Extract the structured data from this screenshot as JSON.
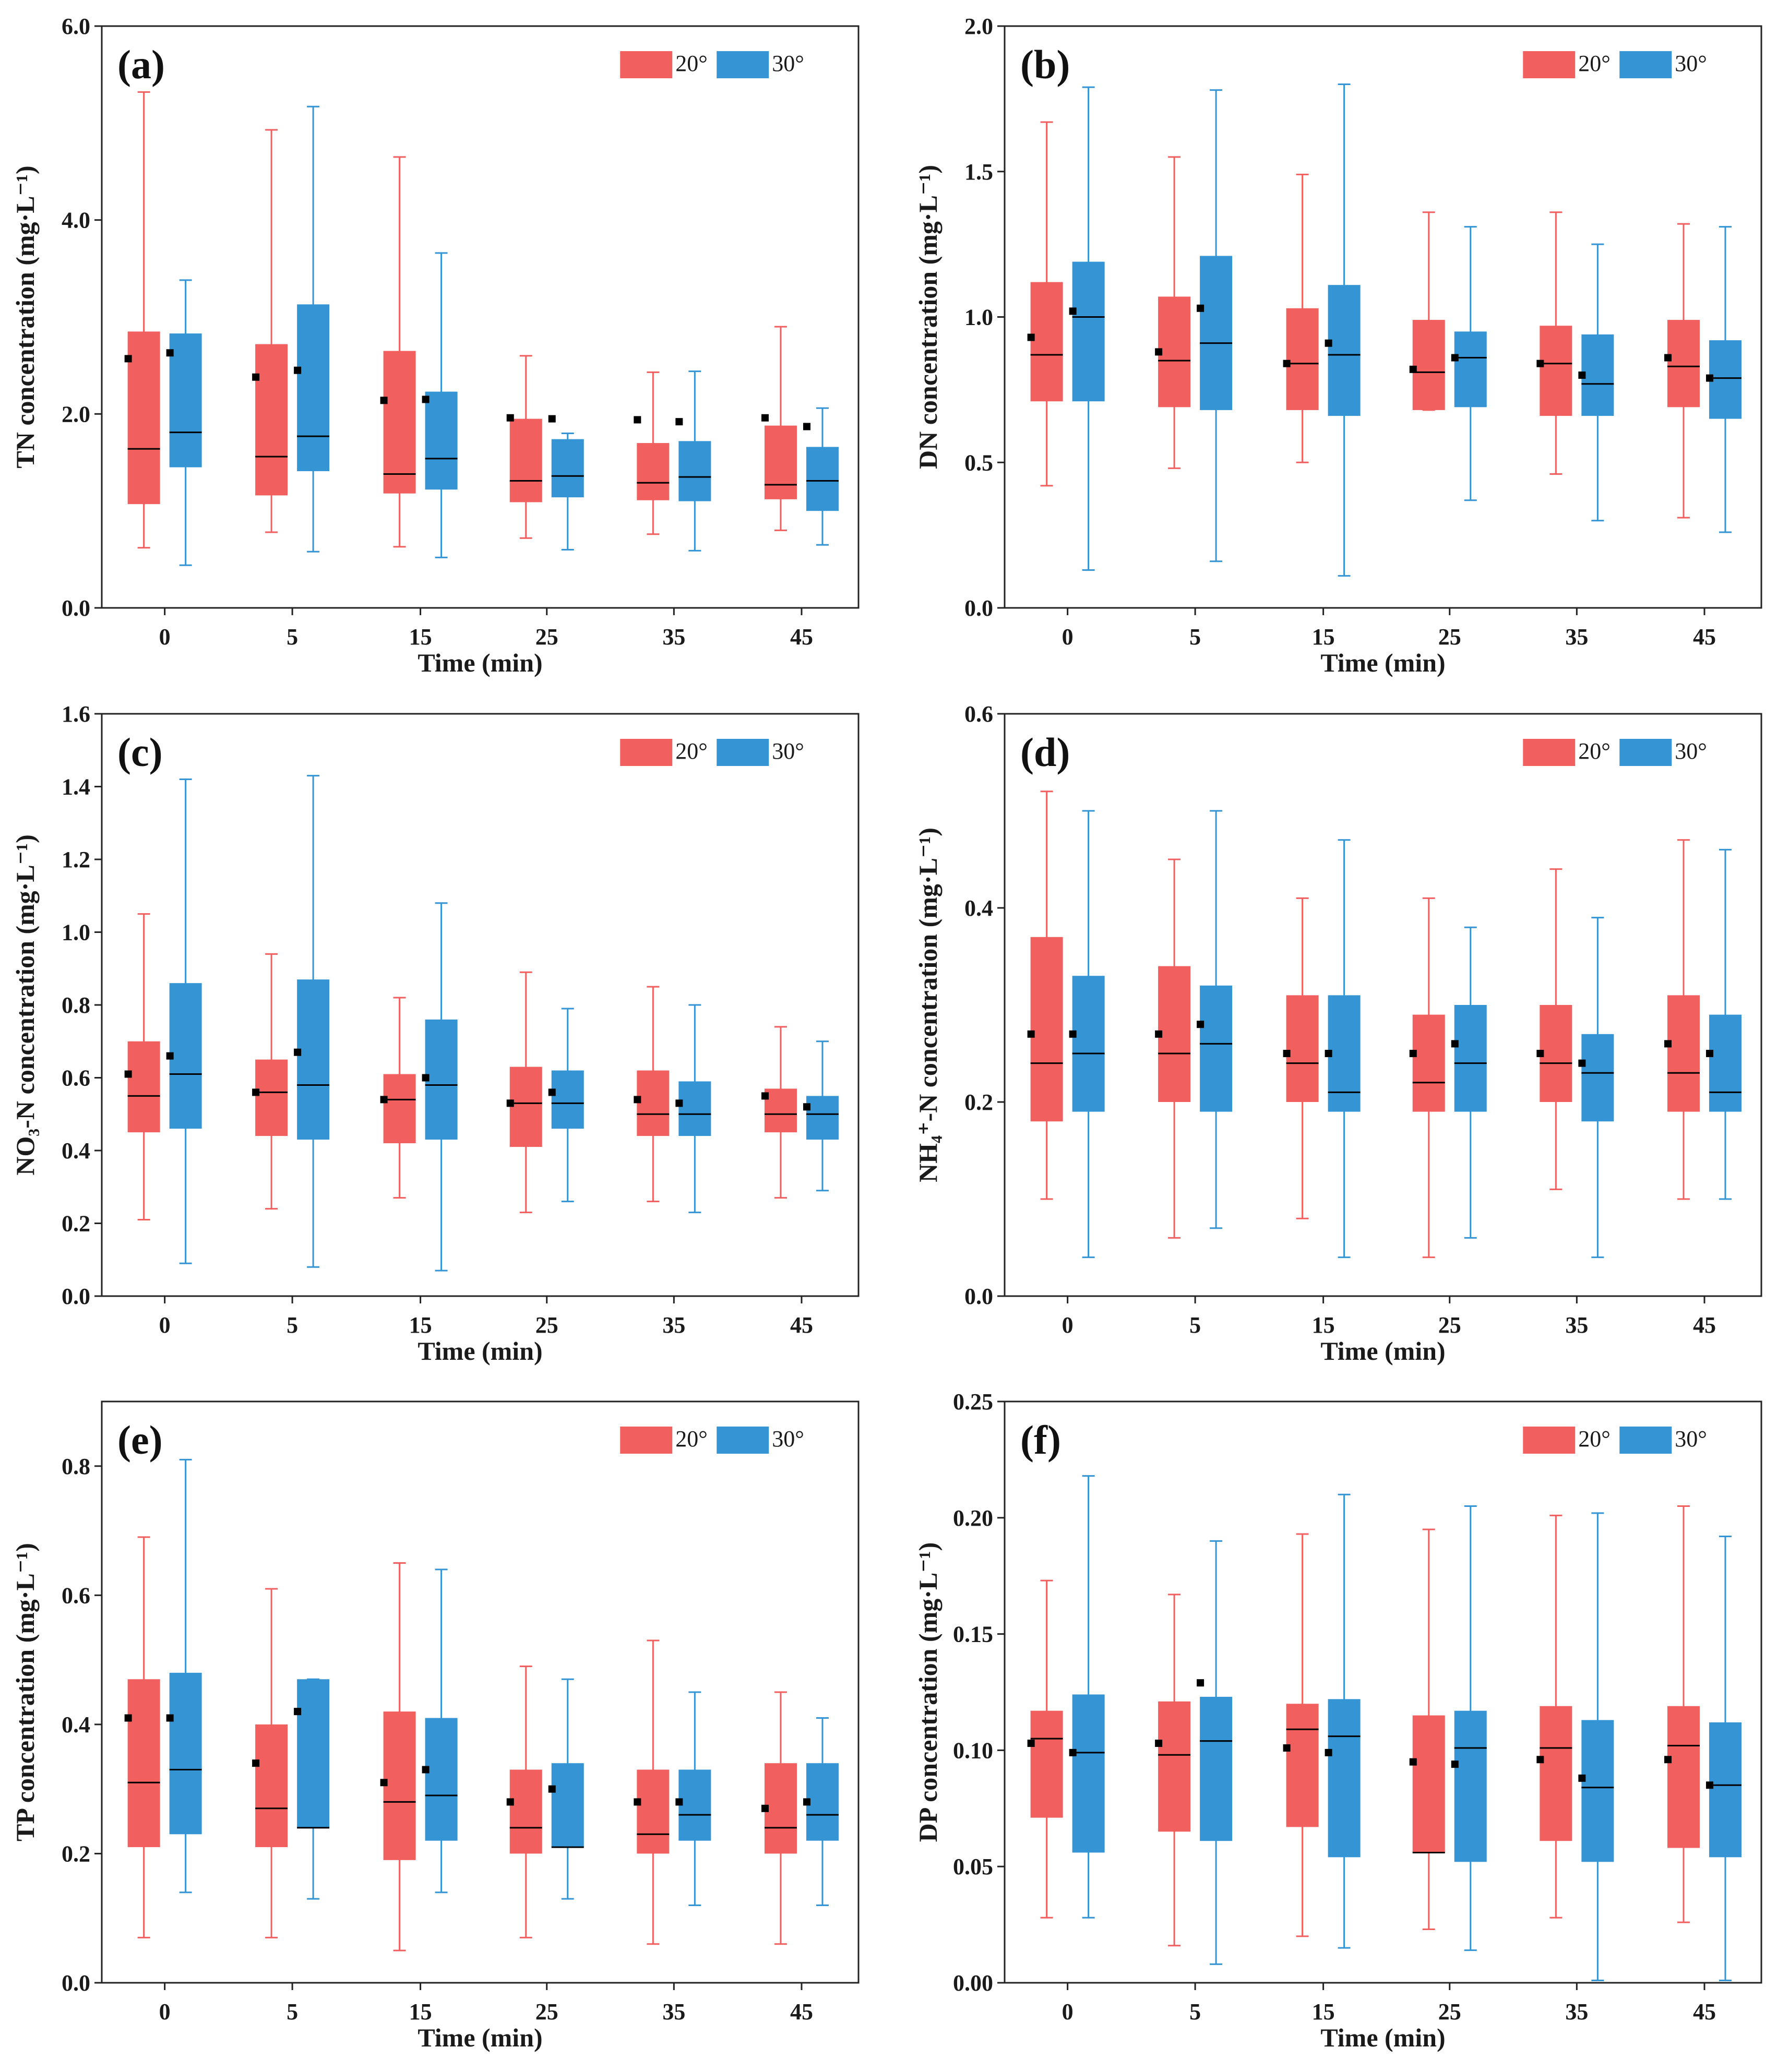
{
  "colors": {
    "s20": "#f15f5f",
    "s30": "#3594d4",
    "axis": "#222222",
    "mean": "#000000"
  },
  "chart_data": [
    {
      "panel": "(a)",
      "type": "box",
      "ylabel": "TN concentration (mg·L⁻¹)",
      "xlabel": "Time (min)",
      "ylim": [
        0,
        6
      ],
      "yticks": [
        "0.0",
        "2.0",
        "4.0",
        "6.0"
      ],
      "ytick_values": [
        0,
        2,
        4,
        6
      ],
      "categories": [
        "0",
        "5",
        "15",
        "25",
        "35",
        "45"
      ],
      "legend": [
        "20°",
        "30°"
      ],
      "series": [
        {
          "name": "20°",
          "boxes": [
            {
              "min": 0.62,
              "q1": 1.07,
              "median": 1.64,
              "q3": 2.85,
              "max": 5.32,
              "mean": 2.57
            },
            {
              "min": 0.78,
              "q1": 1.16,
              "median": 1.56,
              "q3": 2.72,
              "max": 4.93,
              "mean": 2.38
            },
            {
              "min": 0.63,
              "q1": 1.18,
              "median": 1.38,
              "q3": 2.65,
              "max": 4.65,
              "mean": 2.14
            },
            {
              "min": 0.72,
              "q1": 1.09,
              "median": 1.31,
              "q3": 1.95,
              "max": 2.6,
              "mean": 1.96
            },
            {
              "min": 0.76,
              "q1": 1.11,
              "median": 1.29,
              "q3": 1.7,
              "max": 2.43,
              "mean": 1.94
            },
            {
              "min": 0.8,
              "q1": 1.12,
              "median": 1.27,
              "q3": 1.88,
              "max": 2.9,
              "mean": 1.96
            }
          ]
        },
        {
          "name": "30°",
          "boxes": [
            {
              "min": 0.44,
              "q1": 1.45,
              "median": 1.81,
              "q3": 2.83,
              "max": 3.38,
              "mean": 2.63
            },
            {
              "min": 0.58,
              "q1": 1.41,
              "median": 1.77,
              "q3": 3.13,
              "max": 5.17,
              "mean": 2.45
            },
            {
              "min": 0.52,
              "q1": 1.22,
              "median": 1.54,
              "q3": 2.23,
              "max": 3.66,
              "mean": 2.15
            },
            {
              "min": 0.6,
              "q1": 1.14,
              "median": 1.36,
              "q3": 1.74,
              "max": 1.8,
              "mean": 1.95
            },
            {
              "min": 0.59,
              "q1": 1.1,
              "median": 1.35,
              "q3": 1.72,
              "max": 2.44,
              "mean": 1.92
            },
            {
              "min": 0.65,
              "q1": 1.0,
              "median": 1.31,
              "q3": 1.66,
              "max": 2.06,
              "mean": 1.87
            }
          ]
        }
      ]
    },
    {
      "panel": "(b)",
      "type": "box",
      "ylabel": "DN concentration (mg·L⁻¹)",
      "xlabel": "Time (min)",
      "ylim": [
        0,
        2
      ],
      "yticks": [
        "0.0",
        "0.5",
        "1.0",
        "1.5",
        "2.0"
      ],
      "ytick_values": [
        0,
        0.5,
        1,
        1.5,
        2
      ],
      "categories": [
        "0",
        "5",
        "15",
        "25",
        "35",
        "45"
      ],
      "legend": [
        "20°",
        "30°"
      ],
      "series": [
        {
          "name": "20°",
          "boxes": [
            {
              "min": 0.42,
              "q1": 0.71,
              "median": 0.87,
              "q3": 1.12,
              "max": 1.67,
              "mean": 0.93
            },
            {
              "min": 0.48,
              "q1": 0.69,
              "median": 0.85,
              "q3": 1.07,
              "max": 1.55,
              "mean": 0.88
            },
            {
              "min": 0.5,
              "q1": 0.68,
              "median": 0.84,
              "q3": 1.03,
              "max": 1.49,
              "mean": 0.84
            },
            {
              "min": 0.68,
              "q1": 0.68,
              "median": 0.81,
              "q3": 0.99,
              "max": 1.36,
              "mean": 0.82
            },
            {
              "min": 0.46,
              "q1": 0.66,
              "median": 0.84,
              "q3": 0.97,
              "max": 1.36,
              "mean": 0.84
            },
            {
              "min": 0.31,
              "q1": 0.69,
              "median": 0.83,
              "q3": 0.99,
              "max": 1.32,
              "mean": 0.86
            }
          ]
        },
        {
          "name": "30°",
          "boxes": [
            {
              "min": 0.13,
              "q1": 0.71,
              "median": 1.0,
              "q3": 1.19,
              "max": 1.79,
              "mean": 1.02
            },
            {
              "min": 0.16,
              "q1": 0.68,
              "median": 0.91,
              "q3": 1.21,
              "max": 1.78,
              "mean": 1.03
            },
            {
              "min": 0.11,
              "q1": 0.66,
              "median": 0.87,
              "q3": 1.11,
              "max": 1.8,
              "mean": 0.91
            },
            {
              "min": 0.37,
              "q1": 0.69,
              "median": 0.86,
              "q3": 0.95,
              "max": 1.31,
              "mean": 0.86
            },
            {
              "min": 0.3,
              "q1": 0.66,
              "median": 0.77,
              "q3": 0.94,
              "max": 1.25,
              "mean": 0.8
            },
            {
              "min": 0.26,
              "q1": 0.65,
              "median": 0.79,
              "q3": 0.92,
              "max": 1.31,
              "mean": 0.79
            }
          ]
        }
      ]
    },
    {
      "panel": "(c)",
      "type": "box",
      "ylabel": "NO₃-N concentration (mg·L⁻¹)",
      "xlabel": "Time (min)",
      "ylim": [
        0,
        1.6
      ],
      "yticks": [
        "0.0",
        "0.2",
        "0.4",
        "0.6",
        "0.8",
        "1.0",
        "1.2",
        "1.4",
        "1.6"
      ],
      "ytick_values": [
        0,
        0.2,
        0.4,
        0.6,
        0.8,
        1.0,
        1.2,
        1.4,
        1.6
      ],
      "categories": [
        "0",
        "5",
        "15",
        "25",
        "35",
        "45"
      ],
      "legend": [
        "20°",
        "30°"
      ],
      "series": [
        {
          "name": "20°",
          "boxes": [
            {
              "min": 0.21,
              "q1": 0.45,
              "median": 0.55,
              "q3": 0.7,
              "max": 1.05,
              "mean": 0.61
            },
            {
              "min": 0.24,
              "q1": 0.44,
              "median": 0.56,
              "q3": 0.65,
              "max": 0.94,
              "mean": 0.56
            },
            {
              "min": 0.27,
              "q1": 0.42,
              "median": 0.54,
              "q3": 0.61,
              "max": 0.82,
              "mean": 0.54
            },
            {
              "min": 0.23,
              "q1": 0.41,
              "median": 0.53,
              "q3": 0.63,
              "max": 0.89,
              "mean": 0.53
            },
            {
              "min": 0.26,
              "q1": 0.44,
              "median": 0.5,
              "q3": 0.62,
              "max": 0.85,
              "mean": 0.54
            },
            {
              "min": 0.27,
              "q1": 0.45,
              "median": 0.5,
              "q3": 0.57,
              "max": 0.74,
              "mean": 0.55
            }
          ]
        },
        {
          "name": "30°",
          "boxes": [
            {
              "min": 0.09,
              "q1": 0.46,
              "median": 0.61,
              "q3": 0.86,
              "max": 1.42,
              "mean": 0.66
            },
            {
              "min": 0.08,
              "q1": 0.43,
              "median": 0.58,
              "q3": 0.87,
              "max": 1.43,
              "mean": 0.67
            },
            {
              "min": 0.07,
              "q1": 0.43,
              "median": 0.58,
              "q3": 0.76,
              "max": 1.08,
              "mean": 0.6
            },
            {
              "min": 0.26,
              "q1": 0.46,
              "median": 0.53,
              "q3": 0.62,
              "max": 0.79,
              "mean": 0.56
            },
            {
              "min": 0.23,
              "q1": 0.44,
              "median": 0.5,
              "q3": 0.59,
              "max": 0.8,
              "mean": 0.53
            },
            {
              "min": 0.29,
              "q1": 0.43,
              "median": 0.5,
              "q3": 0.55,
              "max": 0.7,
              "mean": 0.52
            }
          ]
        }
      ]
    },
    {
      "panel": "(d)",
      "type": "box",
      "ylabel": "NH₄⁺-N concentration (mg·L⁻¹)",
      "xlabel": "Time (min)",
      "ylim": [
        0,
        0.6
      ],
      "yticks": [
        "0.0",
        "0.2",
        "0.4",
        "0.6"
      ],
      "ytick_values": [
        0,
        0.2,
        0.4,
        0.6
      ],
      "categories": [
        "0",
        "5",
        "15",
        "25",
        "35",
        "45"
      ],
      "legend": [
        "20°",
        "30°"
      ],
      "series": [
        {
          "name": "20°",
          "boxes": [
            {
              "min": 0.1,
              "q1": 0.18,
              "median": 0.24,
              "q3": 0.37,
              "max": 0.52,
              "mean": 0.27
            },
            {
              "min": 0.06,
              "q1": 0.2,
              "median": 0.25,
              "q3": 0.34,
              "max": 0.45,
              "mean": 0.27
            },
            {
              "min": 0.08,
              "q1": 0.2,
              "median": 0.24,
              "q3": 0.31,
              "max": 0.41,
              "mean": 0.25
            },
            {
              "min": 0.04,
              "q1": 0.19,
              "median": 0.22,
              "q3": 0.29,
              "max": 0.41,
              "mean": 0.25
            },
            {
              "min": 0.11,
              "q1": 0.2,
              "median": 0.24,
              "q3": 0.3,
              "max": 0.44,
              "mean": 0.25
            },
            {
              "min": 0.1,
              "q1": 0.19,
              "median": 0.23,
              "q3": 0.31,
              "max": 0.47,
              "mean": 0.26
            }
          ]
        },
        {
          "name": "30°",
          "boxes": [
            {
              "min": 0.04,
              "q1": 0.19,
              "median": 0.25,
              "q3": 0.33,
              "max": 0.5,
              "mean": 0.27
            },
            {
              "min": 0.07,
              "q1": 0.19,
              "median": 0.26,
              "q3": 0.32,
              "max": 0.5,
              "mean": 0.28
            },
            {
              "min": 0.04,
              "q1": 0.19,
              "median": 0.21,
              "q3": 0.31,
              "max": 0.47,
              "mean": 0.25
            },
            {
              "min": 0.06,
              "q1": 0.19,
              "median": 0.24,
              "q3": 0.3,
              "max": 0.38,
              "mean": 0.26
            },
            {
              "min": 0.04,
              "q1": 0.18,
              "median": 0.23,
              "q3": 0.27,
              "max": 0.39,
              "mean": 0.24
            },
            {
              "min": 0.1,
              "q1": 0.19,
              "median": 0.21,
              "q3": 0.29,
              "max": 0.46,
              "mean": 0.25
            }
          ]
        }
      ]
    },
    {
      "panel": "(e)",
      "type": "box",
      "ylabel": "TP concentration (mg·L⁻¹)",
      "xlabel": "Time (min)",
      "ylim": [
        0,
        0.9
      ],
      "yticks": [
        "0.0",
        "0.2",
        "0.4",
        "0.6",
        "0.8"
      ],
      "ytick_values": [
        0,
        0.2,
        0.4,
        0.6,
        0.8
      ],
      "categories": [
        "0",
        "5",
        "15",
        "25",
        "35",
        "45"
      ],
      "legend": [
        "20°",
        "30°"
      ],
      "series": [
        {
          "name": "20°",
          "boxes": [
            {
              "min": 0.07,
              "q1": 0.21,
              "median": 0.31,
              "q3": 0.47,
              "max": 0.69,
              "mean": 0.41
            },
            {
              "min": 0.07,
              "q1": 0.21,
              "median": 0.27,
              "q3": 0.4,
              "max": 0.61,
              "mean": 0.34
            },
            {
              "min": 0.05,
              "q1": 0.19,
              "median": 0.28,
              "q3": 0.42,
              "max": 0.65,
              "mean": 0.31
            },
            {
              "min": 0.07,
              "q1": 0.2,
              "median": 0.24,
              "q3": 0.33,
              "max": 0.49,
              "mean": 0.28
            },
            {
              "min": 0.06,
              "q1": 0.2,
              "median": 0.23,
              "q3": 0.33,
              "max": 0.53,
              "mean": 0.28
            },
            {
              "min": 0.06,
              "q1": 0.2,
              "median": 0.24,
              "q3": 0.34,
              "max": 0.45,
              "mean": 0.27
            }
          ]
        },
        {
          "name": "30°",
          "boxes": [
            {
              "min": 0.14,
              "q1": 0.23,
              "median": 0.33,
              "q3": 0.48,
              "max": 0.81,
              "mean": 0.41
            },
            {
              "min": 0.13,
              "q1": 0.24,
              "median": 0.24,
              "q3": 0.47,
              "max": 0.47,
              "mean": 0.42
            },
            {
              "min": 0.14,
              "q1": 0.22,
              "median": 0.29,
              "q3": 0.41,
              "max": 0.64,
              "mean": 0.33
            },
            {
              "min": 0.13,
              "q1": 0.21,
              "median": 0.21,
              "q3": 0.34,
              "max": 0.47,
              "mean": 0.3
            },
            {
              "min": 0.12,
              "q1": 0.22,
              "median": 0.26,
              "q3": 0.33,
              "max": 0.45,
              "mean": 0.28
            },
            {
              "min": 0.12,
              "q1": 0.22,
              "median": 0.26,
              "q3": 0.34,
              "max": 0.41,
              "mean": 0.28
            }
          ]
        }
      ]
    },
    {
      "panel": "(f)",
      "type": "box",
      "ylabel": "DP concentration (mg·L⁻¹)",
      "xlabel": "Time (min)",
      "ylim": [
        0,
        0.25
      ],
      "yticks": [
        "0.00",
        "0.05",
        "0.10",
        "0.15",
        "0.20",
        "0.25"
      ],
      "ytick_values": [
        0,
        0.05,
        0.1,
        0.15,
        0.2,
        0.25
      ],
      "categories": [
        "0",
        "5",
        "15",
        "25",
        "35",
        "45"
      ],
      "legend": [
        "20°",
        "30°"
      ],
      "series": [
        {
          "name": "20°",
          "boxes": [
            {
              "min": 0.028,
              "q1": 0.071,
              "median": 0.105,
              "q3": 0.117,
              "max": 0.173,
              "mean": 0.103
            },
            {
              "min": 0.016,
              "q1": 0.065,
              "median": 0.098,
              "q3": 0.121,
              "max": 0.167,
              "mean": 0.103
            },
            {
              "min": 0.02,
              "q1": 0.067,
              "median": 0.109,
              "q3": 0.12,
              "max": 0.193,
              "mean": 0.101
            },
            {
              "min": 0.023,
              "q1": 0.056,
              "median": 0.056,
              "q3": 0.115,
              "max": 0.195,
              "mean": 0.095
            },
            {
              "min": 0.028,
              "q1": 0.061,
              "median": 0.101,
              "q3": 0.119,
              "max": 0.201,
              "mean": 0.096
            },
            {
              "min": 0.026,
              "q1": 0.058,
              "median": 0.102,
              "q3": 0.119,
              "max": 0.205,
              "mean": 0.096
            }
          ]
        },
        {
          "name": "30°",
          "boxes": [
            {
              "min": 0.028,
              "q1": 0.056,
              "median": 0.099,
              "q3": 0.124,
              "max": 0.218,
              "mean": 0.099
            },
            {
              "min": 0.008,
              "q1": 0.061,
              "median": 0.104,
              "q3": 0.123,
              "max": 0.19,
              "mean": 0.129
            },
            {
              "min": 0.015,
              "q1": 0.054,
              "median": 0.106,
              "q3": 0.122,
              "max": 0.21,
              "mean": 0.099
            },
            {
              "min": 0.014,
              "q1": 0.052,
              "median": 0.101,
              "q3": 0.117,
              "max": 0.205,
              "mean": 0.094
            },
            {
              "min": 0.001,
              "q1": 0.052,
              "median": 0.084,
              "q3": 0.113,
              "max": 0.202,
              "mean": 0.088
            },
            {
              "min": 0.001,
              "q1": 0.054,
              "median": 0.085,
              "q3": 0.112,
              "max": 0.192,
              "mean": 0.085
            }
          ]
        }
      ]
    }
  ]
}
